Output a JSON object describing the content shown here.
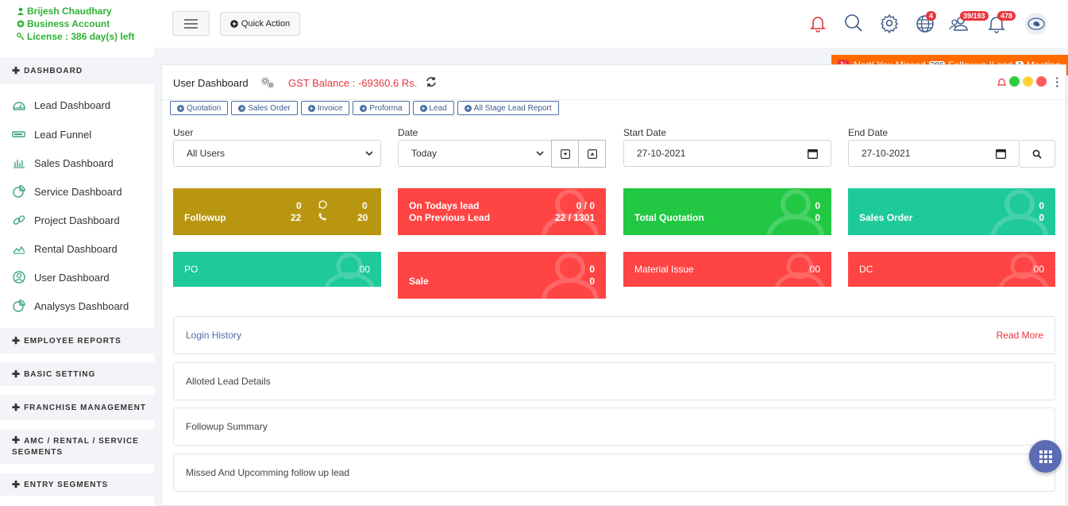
{
  "user": {
    "name": "Brijesh Chaudhary",
    "account": "Business Account",
    "license": "License : 386 day(s) left"
  },
  "sidebar": {
    "sections": [
      {
        "label": "DASHBOARD"
      },
      {
        "label": "EMPLOYEE REPORTS"
      },
      {
        "label": "BASIC SETTING"
      },
      {
        "label": "FRANCHISE MANAGEMENT"
      },
      {
        "label": "AMC / RENTAL / SERVICE SEGMENTS"
      },
      {
        "label": "ENTRY SEGMENTS"
      }
    ],
    "items": [
      {
        "label": "Lead Dashboard",
        "icon": "speedometer-icon"
      },
      {
        "label": "Lead Funnel",
        "icon": "battery-icon"
      },
      {
        "label": "Sales Dashboard",
        "icon": "bar-chart-icon"
      },
      {
        "label": "Service Dashboard",
        "icon": "pie-chart-icon"
      },
      {
        "label": "Project Dashboard",
        "icon": "link-icon"
      },
      {
        "label": "Rental Dashboard",
        "icon": "area-chart-icon"
      },
      {
        "label": "User Dashboard",
        "icon": "user-circle-icon"
      },
      {
        "label": "Analysys Dashboard",
        "icon": "pie-chart-icon"
      }
    ]
  },
  "topbar": {
    "quick_action": "Quick Action",
    "badges": {
      "globe": "4",
      "users": "39/193",
      "bell": "478"
    }
  },
  "alert": {
    "prefix": "Alert! You Missed",
    "followup_count": "386",
    "middle": "Followup || and",
    "meeting_count": "1",
    "suffix": "Meeting"
  },
  "panel": {
    "title": "User Dashboard",
    "gst": "GST Balance : -69360.6 Rs.",
    "tags": [
      "Quotation",
      "Sales Order",
      "Invoice",
      "Proforma",
      "Lead",
      "All Stage Lead Report"
    ],
    "status_colors": [
      "#2ecc40",
      "#ffd43b",
      "#ff5c5c"
    ]
  },
  "filters": {
    "user_label": "User",
    "user_value": "All Users",
    "date_label": "Date",
    "date_value": "Today",
    "start_label": "Start Date",
    "start_value": "27-10-2021",
    "end_label": "End Date",
    "end_value": "27-10-2021"
  },
  "cards": {
    "followup": {
      "label": "Followup",
      "a1": "0",
      "a2": "22",
      "b1": "0",
      "b2": "20",
      "color": "#b8960f"
    },
    "todays": {
      "l1": "On Todays lead",
      "l2": "On Previous Lead",
      "v1": "0 / 0",
      "v2": "22 / 1301",
      "color": "#ff4444"
    },
    "quotation": {
      "label": "Total Quotation",
      "v1": "0",
      "v2": "0",
      "color": "#22c744"
    },
    "sales_order": {
      "label": "Sales Order",
      "v1": "0",
      "v2": "0",
      "color": "#1ec99a"
    },
    "po": {
      "label": "PO",
      "value": "00",
      "color": "#1ec99a"
    },
    "sale": {
      "label": "Sale",
      "v1": "0",
      "v2": "0",
      "color": "#ff4444"
    },
    "material": {
      "label": "Material Issue",
      "value": "00",
      "color": "#ff4444"
    },
    "dc": {
      "label": "DC",
      "value": "00",
      "color": "#ff4444"
    }
  },
  "sections": {
    "login_history": "Login History",
    "read_more": "Read More",
    "alloted": "Alloted Lead Details",
    "followup_summary": "Followup Summary",
    "missed": "Missed And Upcomming follow up lead"
  }
}
